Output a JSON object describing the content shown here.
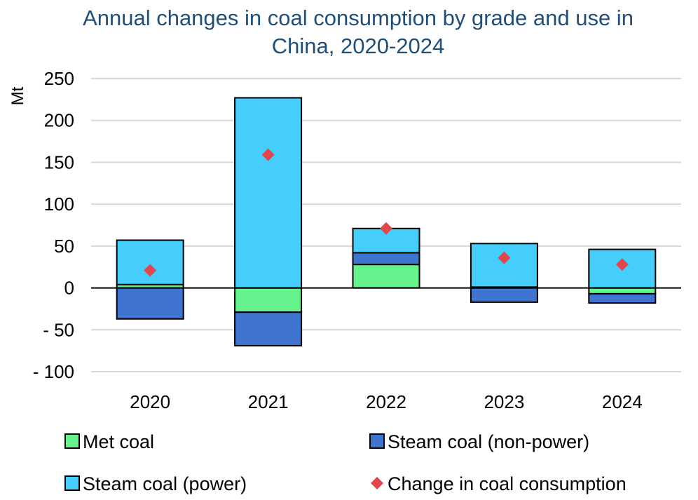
{
  "chart_data": {
    "type": "bar",
    "stacked": true,
    "title_lines": [
      "Annual changes in coal consumption by grade and use in",
      "China, 2020-2024"
    ],
    "ylabel": "Mt",
    "xlabel": "",
    "ylim": [
      -100,
      250
    ],
    "yticks": [
      {
        "value": 250,
        "label": "250"
      },
      {
        "value": 200,
        "label": "200"
      },
      {
        "value": 150,
        "label": "150"
      },
      {
        "value": 100,
        "label": "100"
      },
      {
        "value": 50,
        "label": "50"
      },
      {
        "value": 0,
        "label": "0"
      },
      {
        "value": -50,
        "label": "- 50"
      },
      {
        "value": -100,
        "label": "- 100"
      }
    ],
    "grid": true,
    "categories": [
      "2020",
      "2021",
      "2022",
      "2023",
      "2024"
    ],
    "series": [
      {
        "name": "Met coal",
        "color": "#66f28c",
        "values": [
          4,
          -29,
          28,
          1,
          -7
        ]
      },
      {
        "name": "Steam coal (non-power)",
        "color": "#3f74d0",
        "values": [
          -37,
          -40,
          14,
          -17,
          -11
        ]
      },
      {
        "name": "Steam coal (power)",
        "color": "#45cdfb",
        "values": [
          53,
          227,
          29,
          52,
          46
        ]
      }
    ],
    "markers": {
      "name": "Change in coal consumption",
      "color": "#e0464a",
      "values": [
        21,
        159,
        71,
        36,
        28
      ]
    },
    "legend_position": "bottom"
  }
}
